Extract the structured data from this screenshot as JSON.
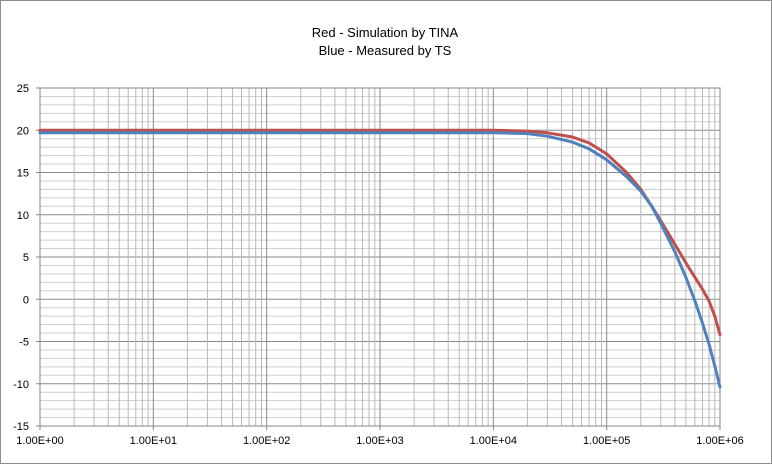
{
  "chart_data": {
    "type": "line",
    "title": [
      "Red - Simulation by TINA",
      "Blue - Measured by TS"
    ],
    "xlabel": "",
    "ylabel": "",
    "x_scale": "log",
    "xlim": [
      1,
      1000000
    ],
    "ylim": [
      -15,
      25
    ],
    "grid": true,
    "legend": "none",
    "x_tick_labels": [
      "1.00E+00",
      "1.00E+01",
      "1.00E+02",
      "1.00E+03",
      "1.00E+04",
      "1.00E+05",
      "1.00E+06"
    ],
    "y_ticks": [
      -15,
      -10,
      -5,
      0,
      5,
      10,
      15,
      20,
      25
    ],
    "series": [
      {
        "color": "#c0504d",
        "points": [
          [
            1,
            20.0
          ],
          [
            10,
            20.0
          ],
          [
            100,
            20.0
          ],
          [
            1000,
            20.0
          ],
          [
            10000,
            20.0
          ],
          [
            20000,
            19.9
          ],
          [
            30000,
            19.7
          ],
          [
            50000,
            19.2
          ],
          [
            70000,
            18.5
          ],
          [
            100000,
            17.2
          ],
          [
            150000,
            15.0
          ],
          [
            200000,
            13.0
          ],
          [
            250000,
            11.0
          ],
          [
            300000,
            9.3
          ],
          [
            400000,
            6.5
          ],
          [
            500000,
            4.3
          ],
          [
            600000,
            2.6
          ],
          [
            700000,
            1.2
          ],
          [
            800000,
            -0.2
          ],
          [
            900000,
            -2.0
          ],
          [
            1000000,
            -4.2
          ]
        ]
      },
      {
        "color": "#4f81bd",
        "points": [
          [
            1,
            19.7
          ],
          [
            10,
            19.7
          ],
          [
            100,
            19.7
          ],
          [
            1000,
            19.7
          ],
          [
            10000,
            19.7
          ],
          [
            20000,
            19.6
          ],
          [
            30000,
            19.3
          ],
          [
            50000,
            18.6
          ],
          [
            70000,
            17.8
          ],
          [
            100000,
            16.5
          ],
          [
            150000,
            14.5
          ],
          [
            200000,
            12.8
          ],
          [
            250000,
            11.0
          ],
          [
            300000,
            9.0
          ],
          [
            400000,
            5.6
          ],
          [
            500000,
            2.6
          ],
          [
            600000,
            -0.2
          ],
          [
            700000,
            -2.8
          ],
          [
            800000,
            -5.3
          ],
          [
            900000,
            -7.9
          ],
          [
            1000000,
            -10.4
          ]
        ]
      }
    ]
  }
}
